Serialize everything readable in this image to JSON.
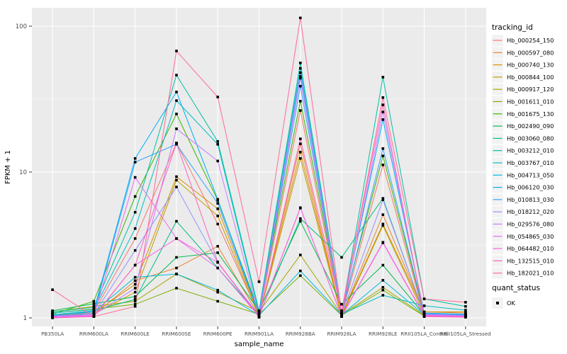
{
  "chart_data": {
    "type": "line",
    "title": "",
    "xlabel": "sample_name",
    "ylabel": "FPKM + 1",
    "y_scale": "log10",
    "ylim": [
      1,
      120
    ],
    "y_ticks": [
      1,
      10,
      100
    ],
    "y_minor_ticks": [
      3.162,
      31.62
    ],
    "grid": "white major+minor on gray panel",
    "legend_position": "right",
    "marker": "black-square",
    "categories": [
      "PB350LA",
      "RRIM600LA",
      "RRIM600LE",
      "RRIM600SE",
      "RRIM600PE",
      "RRIM901LA",
      "RRIM928BA",
      "RRIM928LA",
      "RRIM928LE",
      "RRII105LA_Control",
      "RRII105LA_Stressed"
    ],
    "series": [
      {
        "name": "Hb_000254_150",
        "color": "#F8766D",
        "values": [
          1.02,
          1.1,
          3.5,
          15.8,
          4.4,
          1.05,
          26.4,
          1.05,
          11.2,
          1.03,
          1.02
        ]
      },
      {
        "name": "Hb_000597_080",
        "color": "#EA8331",
        "values": [
          1.05,
          1.05,
          1.8,
          2.2,
          3.1,
          1.03,
          15.6,
          1.03,
          5.1,
          1.1,
          1.08
        ]
      },
      {
        "name": "Hb_000740_130",
        "color": "#D89000",
        "values": [
          1.04,
          1.08,
          1.7,
          9.3,
          5.6,
          1.04,
          13.7,
          1.04,
          4.4,
          1.1,
          1.1
        ]
      },
      {
        "name": "Hb_000844_100",
        "color": "#C09B00",
        "values": [
          1.03,
          1.06,
          1.5,
          8.8,
          5.0,
          1.02,
          12.4,
          1.02,
          4.3,
          1.05,
          1.04
        ]
      },
      {
        "name": "Hb_000917_120",
        "color": "#A3A500",
        "values": [
          1.1,
          1.2,
          1.3,
          2.0,
          1.5,
          1.1,
          2.7,
          1.05,
          1.62,
          1.04,
          1.03
        ]
      },
      {
        "name": "Hb_001611_010",
        "color": "#7CAE00",
        "values": [
          1.08,
          1.15,
          1.24,
          1.6,
          1.3,
          1.06,
          1.95,
          1.04,
          1.55,
          1.03,
          1.02
        ]
      },
      {
        "name": "Hb_001675_130",
        "color": "#39B600",
        "values": [
          1.06,
          1.3,
          6.8,
          25.0,
          6.4,
          1.1,
          30.6,
          1.1,
          12.9,
          1.06,
          1.05
        ]
      },
      {
        "name": "Hb_002490_090",
        "color": "#00BB4E",
        "values": [
          1.12,
          1.25,
          1.4,
          2.6,
          2.8,
          1.12,
          4.6,
          1.24,
          2.3,
          1.05,
          1.04
        ]
      },
      {
        "name": "Hb_003060_080",
        "color": "#00BF7D",
        "values": [
          1.05,
          1.12,
          1.34,
          4.6,
          2.2,
          1.05,
          4.8,
          2.6,
          6.6,
          1.05,
          1.04
        ]
      },
      {
        "name": "Hb_003212_010",
        "color": "#00C1A3",
        "values": [
          1.1,
          1.18,
          5.3,
          46.2,
          16.2,
          1.12,
          56.0,
          1.08,
          44.7,
          1.35,
          1.2
        ]
      },
      {
        "name": "Hb_003767_010",
        "color": "#00BFC4",
        "values": [
          1.08,
          1.14,
          4.1,
          30.9,
          15.5,
          1.08,
          51.4,
          1.06,
          1.43,
          1.21,
          1.13
        ]
      },
      {
        "name": "Hb_004713_050",
        "color": "#00BAE0",
        "values": [
          1.05,
          1.1,
          1.9,
          2.0,
          1.55,
          1.04,
          2.1,
          1.05,
          1.81,
          1.05,
          1.05
        ]
      },
      {
        "name": "Hb_006120_030",
        "color": "#00B0F6",
        "values": [
          1.04,
          1.12,
          12.4,
          35.4,
          6.5,
          1.06,
          45.2,
          1.07,
          22.9,
          1.08,
          1.06
        ]
      },
      {
        "name": "Hb_010813_030",
        "color": "#35A2FF",
        "values": [
          1.03,
          1.08,
          11.7,
          15.5,
          6.1,
          1.05,
          38.8,
          1.06,
          14.5,
          1.07,
          1.05
        ]
      },
      {
        "name": "Hb_018212_020",
        "color": "#9590FF",
        "values": [
          1.02,
          1.06,
          2.9,
          7.9,
          2.4,
          1.04,
          48.0,
          1.05,
          6.45,
          1.06,
          1.04
        ]
      },
      {
        "name": "Hb_029576_080",
        "color": "#C77CFF",
        "values": [
          1.03,
          1.05,
          1.6,
          19.8,
          11.9,
          1.03,
          44.0,
          1.04,
          25.8,
          1.05,
          1.03
        ]
      },
      {
        "name": "Hb_054865_030",
        "color": "#E76BF3",
        "values": [
          1.02,
          1.04,
          9.2,
          3.5,
          2.2,
          1.02,
          5.66,
          1.03,
          3.3,
          1.04,
          1.03
        ]
      },
      {
        "name": "Hb_064482_010",
        "color": "#FA62DB",
        "values": [
          1.01,
          1.03,
          2.3,
          3.5,
          2.4,
          1.02,
          5.7,
          1.02,
          3.27,
          1.03,
          1.02
        ]
      },
      {
        "name": "Hb_132515_010",
        "color": "#FF62BC",
        "values": [
          1.0,
          1.02,
          2.3,
          15.8,
          2.42,
          1.01,
          16.9,
          1.12,
          28.9,
          1.02,
          1.01
        ]
      },
      {
        "name": "Hb_182021_010",
        "color": "#FF6A98",
        "values": [
          1.56,
          1.02,
          1.2,
          67.6,
          32.7,
          1.77,
          114.0,
          1.08,
          32.4,
          1.35,
          1.28
        ]
      }
    ],
    "legend": {
      "tracking_title": "tracking_id",
      "quant_title": "quant_status",
      "quant_items": [
        {
          "label": "OK"
        }
      ]
    },
    "colors": {
      "panel_bg": "#EBEBEB",
      "grid": "#FFFFFF",
      "tick_text": "#4D4D4D",
      "axis_title_text": "#000000",
      "legend_key_bg": "#F2F2F2",
      "marker": "#000000"
    }
  }
}
